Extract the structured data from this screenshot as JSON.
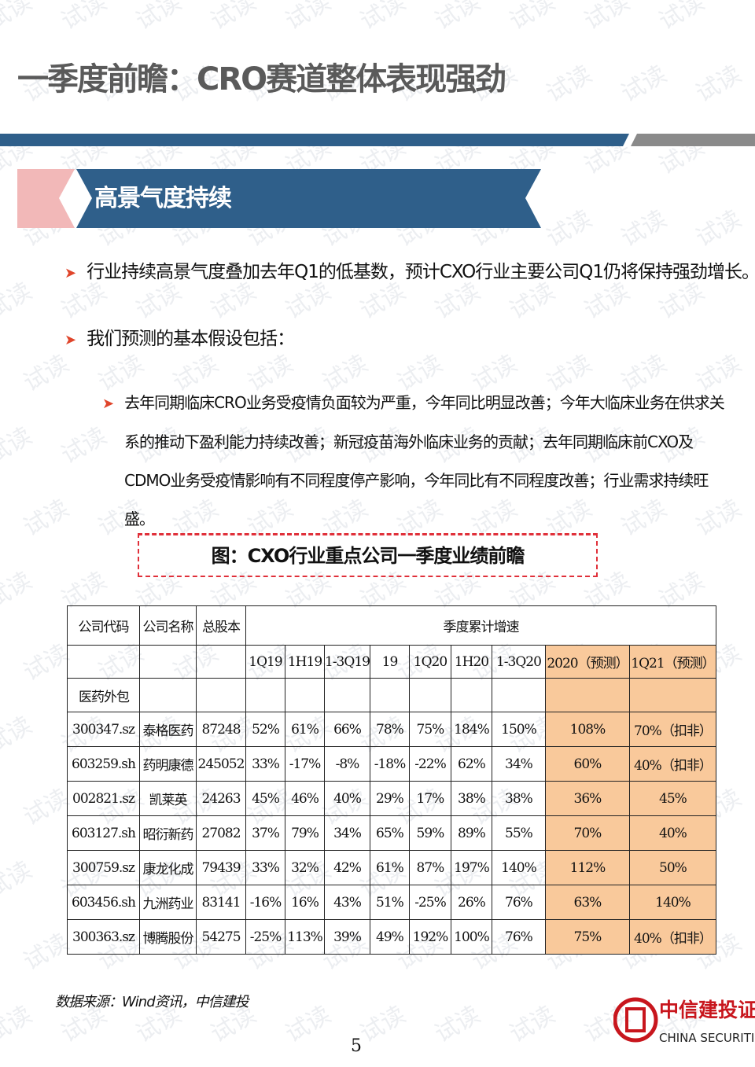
{
  "header": {
    "title": "一季度前瞻：CRO赛道整体表现强劲"
  },
  "section": {
    "title": "高景气度持续"
  },
  "bullets": [
    "行业持续高景气度叠加去年Q1的低基数，预计CXO行业主要公司Q1仍将保持强劲增长。",
    "我们预测的基本假设包括："
  ],
  "sub_bullets": [
    "去年同期临床CRO业务受疫情负面较为严重，今年同比明显改善；今年大临床业务在供求关系的推动下盈利能力持续改善；新冠疫苗海外临床业务的贡献；去年同期临床前CXO及CDMO业务受疫情影响有不同程度停产影响，今年同比有不同程度改善；行业需求持续旺盛。"
  ],
  "figure": {
    "title": "图：CXO行业重点公司一季度业绩前瞻"
  },
  "table": {
    "header": [
      "公司代码",
      "公司名称",
      "总股本",
      "季度累计增速"
    ],
    "subheader": [
      "1Q19",
      "1H19",
      "1-3Q19",
      "19",
      "1Q20",
      "1H20",
      "1-3Q20",
      "2020（预测）",
      "1Q21（预测）"
    ],
    "group": "医药外包",
    "rows": [
      [
        "300347.sz",
        "泰格医药",
        87248,
        "52%",
        "61%",
        "66%",
        "78%",
        "75%",
        "184%",
        "150%",
        "108%",
        "70%（扣非）"
      ],
      [
        "603259.sh",
        "药明康德",
        245052,
        "33%",
        "-17%",
        "-8%",
        "-18%",
        "-22%",
        "62%",
        "34%",
        "60%",
        "40%（扣非）"
      ],
      [
        "002821.sz",
        "凯莱英",
        24263,
        "45%",
        "46%",
        "40%",
        "29%",
        "17%",
        "38%",
        "38%",
        "36%",
        "45%"
      ],
      [
        "603127.sh",
        "昭衍新药",
        27082,
        "37%",
        "79%",
        "34%",
        "65%",
        "59%",
        "89%",
        "55%",
        "70%",
        "40%"
      ],
      [
        "300759.sz",
        "康龙化成",
        79439,
        "33%",
        "32%",
        "42%",
        "61%",
        "87%",
        "197%",
        "140%",
        "112%",
        "50%"
      ],
      [
        "603456.sh",
        "九洲药业",
        83141,
        "-16%",
        "16%",
        "43%",
        "51%",
        "-25%",
        "26%",
        "76%",
        "63%",
        "140%"
      ],
      [
        "300363.sz",
        "博腾股份",
        54275,
        "-25%",
        "113%",
        "39%",
        "49%",
        "192%",
        "100%",
        "76%",
        "75%",
        "40%（扣非）"
      ]
    ]
  },
  "source": "数据来源：Wind资讯，中信建投",
  "logo": {
    "cn": "中信建投证券",
    "en": "CHINA SECURITIES"
  },
  "page_number": "5",
  "watermark": "试读"
}
